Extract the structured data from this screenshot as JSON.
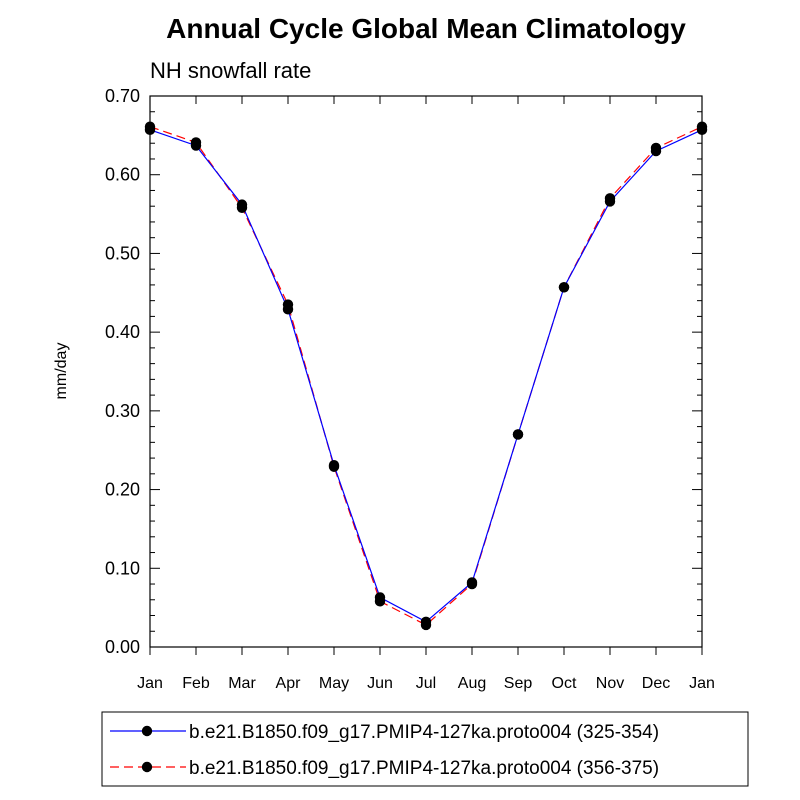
{
  "chart_data": {
    "type": "line",
    "title": "Annual Cycle Global Mean Climatology",
    "subtitle": "NH snowfall rate",
    "xlabel": "",
    "ylabel": "mm/day",
    "ylim": [
      0.0,
      0.7
    ],
    "yticks": [
      "0.00",
      "0.10",
      "0.20",
      "0.30",
      "0.40",
      "0.50",
      "0.60",
      "0.70"
    ],
    "categories": [
      "Jan",
      "Feb",
      "Mar",
      "Apr",
      "May",
      "Jun",
      "Jul",
      "Aug",
      "Sep",
      "Oct",
      "Nov",
      "Dec",
      "Jan"
    ],
    "grid": false,
    "legend_position": "bottom",
    "series": [
      {
        "name": "b.e21.B1850.f09_g17.PMIP4-127ka.proto004 (325-354)",
        "color": "#0000ff",
        "dash": "solid",
        "values": [
          0.657,
          0.637,
          0.562,
          0.429,
          0.231,
          0.063,
          0.032,
          0.082,
          0.27,
          0.457,
          0.566,
          0.63,
          0.657
        ]
      },
      {
        "name": "b.e21.B1850.f09_g17.PMIP4-127ka.proto004 (356-375)",
        "color": "#ff0000",
        "dash": "dashed",
        "values": [
          0.661,
          0.641,
          0.558,
          0.435,
          0.229,
          0.058,
          0.028,
          0.08,
          0.27,
          0.457,
          0.57,
          0.634,
          0.661
        ]
      }
    ]
  }
}
